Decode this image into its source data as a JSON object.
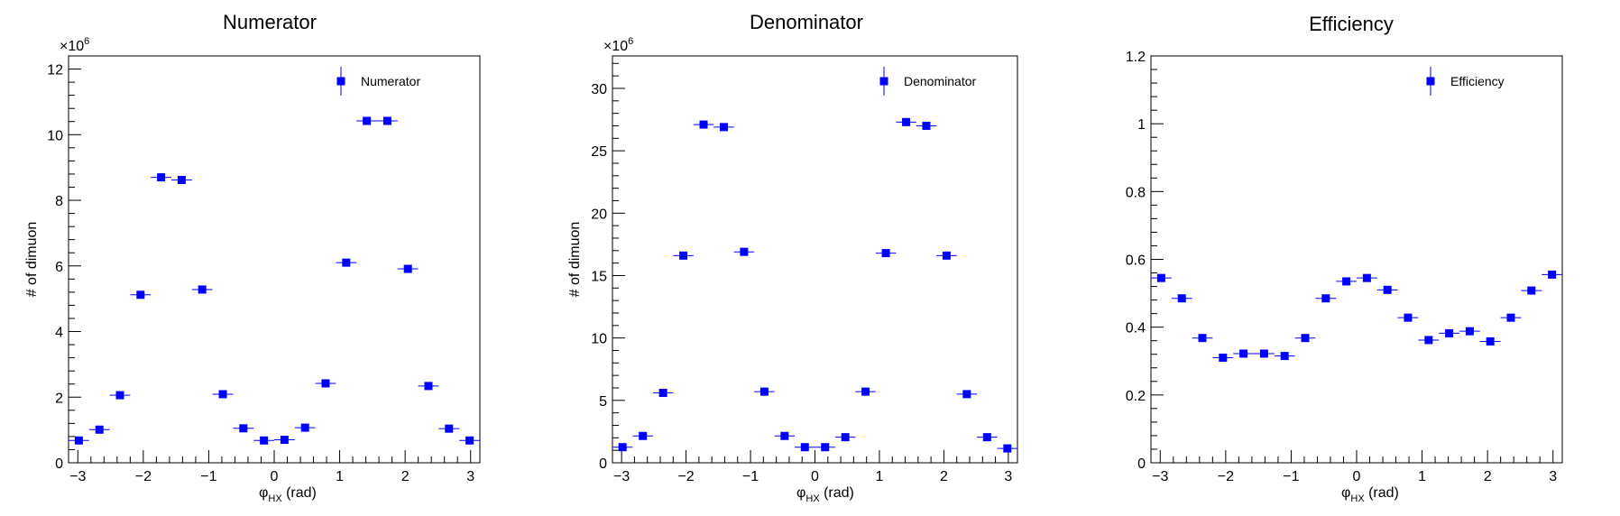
{
  "marker_color": "#0000ff",
  "chart_data": [
    {
      "type": "scatter",
      "title": "Numerator",
      "xlabel": {
        "main": "φ",
        "sub": "HX",
        "unit": " (rad)"
      },
      "ylabel": "# of dimuon",
      "exponent": {
        "base": "×10",
        "power": "6"
      },
      "xlim": [
        -3.14159,
        3.14159
      ],
      "ylim": [
        0,
        12.4
      ],
      "xticks": [
        -3,
        -2,
        -1,
        0,
        1,
        2,
        3
      ],
      "xtick_labels": [
        "−3",
        "−2",
        "−1",
        "0",
        "1",
        "2",
        "3"
      ],
      "yticks": [
        0,
        2,
        4,
        6,
        8,
        10,
        12
      ],
      "ytick_labels": [
        "0",
        "2",
        "4",
        "6",
        "8",
        "10",
        "12"
      ],
      "legend": {
        "label": "Numerator",
        "position": "top-right"
      },
      "bins": 20,
      "x": [
        -2.985,
        -2.67,
        -2.356,
        -2.042,
        -1.728,
        -1.414,
        -1.1,
        -0.785,
        -0.471,
        -0.157,
        0.157,
        0.471,
        0.785,
        1.1,
        1.414,
        1.728,
        2.042,
        2.356,
        2.67,
        2.985
      ],
      "values": [
        0.68,
        1.01,
        2.06,
        5.12,
        8.7,
        8.62,
        5.28,
        2.09,
        1.05,
        0.68,
        0.7,
        1.07,
        2.42,
        6.1,
        10.42,
        10.42,
        5.91,
        2.34,
        1.04,
        0.68
      ]
    },
    {
      "type": "scatter",
      "title": "Denominator",
      "xlabel": {
        "main": "φ",
        "sub": "HX",
        "unit": " (rad)"
      },
      "ylabel": "# of dimuon",
      "exponent": {
        "base": "×10",
        "power": "6"
      },
      "xlim": [
        -3.14159,
        3.14159
      ],
      "ylim": [
        0,
        32.6
      ],
      "xticks": [
        -3,
        -2,
        -1,
        0,
        1,
        2,
        3
      ],
      "xtick_labels": [
        "−3",
        "−2",
        "−1",
        "0",
        "1",
        "2",
        "3"
      ],
      "yticks": [
        0,
        5,
        10,
        15,
        20,
        25,
        30
      ],
      "ytick_labels": [
        "0",
        "5",
        "10",
        "15",
        "20",
        "25",
        "30"
      ],
      "legend": {
        "label": "Denominator",
        "position": "top-right"
      },
      "bins": 20,
      "x": [
        -2.985,
        -2.67,
        -2.356,
        -2.042,
        -1.728,
        -1.414,
        -1.1,
        -0.785,
        -0.471,
        -0.157,
        0.157,
        0.471,
        0.785,
        1.1,
        1.414,
        1.728,
        2.042,
        2.356,
        2.67,
        2.985
      ],
      "values": [
        1.25,
        2.15,
        5.6,
        16.6,
        27.1,
        26.9,
        16.9,
        5.7,
        2.15,
        1.25,
        1.25,
        2.05,
        5.7,
        16.8,
        27.3,
        27.0,
        16.6,
        5.5,
        2.05,
        1.15
      ]
    },
    {
      "type": "scatter",
      "title": "Efficiency",
      "xlabel": {
        "main": "φ",
        "sub": "HX",
        "unit": " (rad)"
      },
      "ylabel": "",
      "exponent": null,
      "xlim": [
        -3.14159,
        3.14159
      ],
      "ylim": [
        0,
        1.2
      ],
      "xticks": [
        -3,
        -2,
        -1,
        0,
        1,
        2,
        3
      ],
      "xtick_labels": [
        "−3",
        "−2",
        "−1",
        "0",
        "1",
        "2",
        "3"
      ],
      "yticks": [
        0,
        0.2,
        0.4,
        0.6,
        0.8,
        1.0,
        1.2
      ],
      "ytick_labels": [
        "0",
        "0.2",
        "0.4",
        "0.6",
        "0.8",
        "1",
        "1.2"
      ],
      "legend": {
        "label": "Efficiency",
        "position": "top-right"
      },
      "bins": 20,
      "x": [
        -2.985,
        -2.67,
        -2.356,
        -2.042,
        -1.728,
        -1.414,
        -1.1,
        -0.785,
        -0.471,
        -0.157,
        0.157,
        0.471,
        0.785,
        1.1,
        1.414,
        1.728,
        2.042,
        2.356,
        2.67,
        2.985
      ],
      "values": [
        0.545,
        0.485,
        0.368,
        0.31,
        0.322,
        0.322,
        0.315,
        0.368,
        0.485,
        0.535,
        0.545,
        0.51,
        0.428,
        0.362,
        0.382,
        0.388,
        0.358,
        0.428,
        0.508,
        0.555
      ]
    }
  ]
}
